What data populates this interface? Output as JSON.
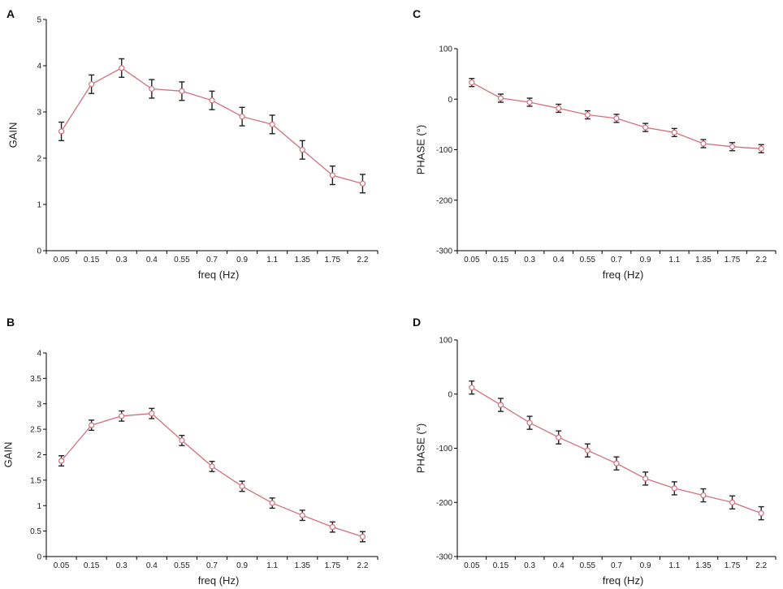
{
  "colors": {
    "line": "#d4707c",
    "marker": "#d4707c",
    "errorbar": "#222222",
    "axis": "#000000"
  },
  "chart_data": [
    {
      "panel": "A",
      "type": "line",
      "categories": [
        "0.05",
        "0.15",
        "0.3",
        "0.4",
        "0.55",
        "0.7",
        "0.9",
        "1.1",
        "1.35",
        "1.75",
        "2.2"
      ],
      "values": [
        2.58,
        3.6,
        3.95,
        3.5,
        3.45,
        3.25,
        2.9,
        2.73,
        2.18,
        1.63,
        1.45
      ],
      "errors": [
        0.2,
        0.2,
        0.2,
        0.2,
        0.2,
        0.2,
        0.2,
        0.2,
        0.2,
        0.2,
        0.2
      ],
      "xlabel": "freq (Hz)",
      "ylabel": "GAIN",
      "ylim": [
        0,
        5
      ],
      "yticks": [
        "0",
        "1",
        "2",
        "3",
        "4",
        "5"
      ]
    },
    {
      "panel": "B",
      "type": "line",
      "categories": [
        "0.05",
        "0.15",
        "0.3",
        "0.4",
        "0.55",
        "0.7",
        "0.9",
        "1.1",
        "1.35",
        "1.75",
        "2.2"
      ],
      "values": [
        1.88,
        2.58,
        2.76,
        2.81,
        2.28,
        1.77,
        1.38,
        1.05,
        0.81,
        0.58,
        0.39
      ],
      "errors": [
        0.1,
        0.1,
        0.1,
        0.1,
        0.1,
        0.1,
        0.1,
        0.1,
        0.1,
        0.1,
        0.1
      ],
      "xlabel": "freq (Hz)",
      "ylabel": "GAIN",
      "ylim": [
        0,
        4
      ],
      "yticks": [
        "0",
        "0.5",
        "1",
        "1.5",
        "2",
        "2.5",
        "3",
        "3.5",
        "4"
      ]
    },
    {
      "panel": "C",
      "type": "line",
      "categories": [
        "0.05",
        "0.15",
        "0.3",
        "0.4",
        "0.55",
        "0.7",
        "0.9",
        "1.1",
        "1.35",
        "1.75",
        "2.2"
      ],
      "values": [
        33,
        2,
        -6,
        -18,
        -31,
        -38,
        -56,
        -66,
        -88,
        -94,
        -98
      ],
      "errors": [
        8,
        8,
        8,
        8,
        8,
        8,
        8,
        8,
        8,
        8,
        8
      ],
      "xlabel": "freq (Hz)",
      "ylabel": "PHASE (°)",
      "ylim": [
        -300,
        100
      ],
      "yticks": [
        "-300",
        "-200",
        "-100",
        "0",
        "100"
      ]
    },
    {
      "panel": "D",
      "type": "line",
      "categories": [
        "0.05",
        "0.15",
        "0.3",
        "0.4",
        "0.55",
        "0.7",
        "0.9",
        "1.1",
        "1.35",
        "1.75",
        "2.2"
      ],
      "values": [
        12,
        -20,
        -53,
        -80,
        -104,
        -128,
        -156,
        -174,
        -187,
        -200,
        -220
      ],
      "errors": [
        12,
        12,
        12,
        12,
        12,
        12,
        12,
        12,
        12,
        12,
        12
      ],
      "xlabel": "freq (Hz)",
      "ylabel": "PHASE (°)",
      "ylim": [
        -300,
        100
      ],
      "yticks": [
        "-300",
        "-200",
        "-100",
        "0",
        "100"
      ]
    }
  ]
}
